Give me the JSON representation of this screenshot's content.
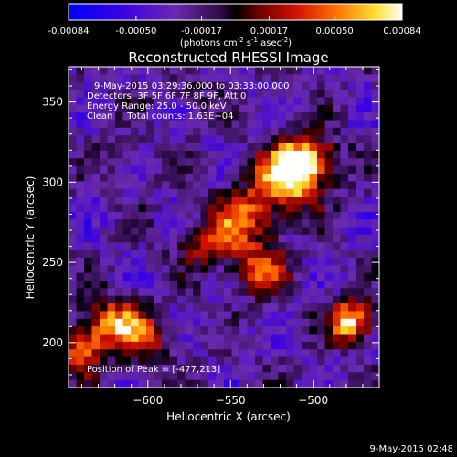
{
  "colorbar": {
    "ticks": [
      "-0.00084",
      "-0.00050",
      "-0.00017",
      "0.00017",
      "0.00050",
      "0.00084"
    ],
    "units_main": "(photons cm",
    "units_exp1": "-2",
    "units_mid": " s",
    "units_exp2": "-1",
    "units_end": " asec",
    "units_exp3": "-2",
    "units_close": ")"
  },
  "title": "Reconstructed RHESSI Image",
  "info": {
    "line1": "9-May-2015 03:29:36.000 to 03:33:00.000",
    "line2": "Detectors: 3F 5F 6F 7F 8F 9F, Att 0",
    "line3": "Energy Range: 25.0 - 50.0 keV",
    "line4": "Clean     Total counts: 1.63E+04"
  },
  "peak_label": "Position of Peak = [-477,213]",
  "footer_date": "9-May-2015 02:48",
  "chart_data": {
    "type": "heatmap",
    "xlabel": "Heliocentric X (arcsec)",
    "ylabel": "Heliocentric Y (arcsec)",
    "xlim": [
      -648,
      -460
    ],
    "ylim": [
      172,
      372
    ],
    "xticks": [
      -600,
      -550,
      -500
    ],
    "xtick_labels": [
      "−600",
      "−550",
      "−500"
    ],
    "yticks": [
      200,
      250,
      300,
      350
    ],
    "ytick_labels": [
      "200",
      "250",
      "300",
      "350"
    ],
    "sources": [
      {
        "x": -515,
        "y": 303,
        "amp": 0.00084,
        "sx": 14,
        "sy": 14
      },
      {
        "x": -503,
        "y": 315,
        "amp": 0.0006,
        "sx": 12,
        "sy": 10
      },
      {
        "x": -540,
        "y": 280,
        "amp": 0.0005,
        "sx": 12,
        "sy": 12
      },
      {
        "x": -560,
        "y": 262,
        "amp": 0.00048,
        "sx": 14,
        "sy": 12
      },
      {
        "x": -530,
        "y": 245,
        "amp": 0.00052,
        "sx": 10,
        "sy": 12
      },
      {
        "x": -477,
        "y": 213,
        "amp": 0.00084,
        "sx": 9,
        "sy": 9
      },
      {
        "x": -618,
        "y": 212,
        "amp": 0.00072,
        "sx": 14,
        "sy": 10
      },
      {
        "x": -640,
        "y": 195,
        "amp": 0.00058,
        "sx": 10,
        "sy": 10
      },
      {
        "x": -600,
        "y": 198,
        "amp": 0.0003,
        "sx": 12,
        "sy": 10
      },
      {
        "x": -575,
        "y": 355,
        "amp": 0.0002,
        "sx": 10,
        "sy": 6
      },
      {
        "x": -610,
        "y": 315,
        "amp": 0.00012,
        "sx": 10,
        "sy": 10
      }
    ],
    "background_min": -0.00084,
    "background_max": 0.00012,
    "colorbar_range": [
      -0.00084,
      0.00084
    ],
    "colormap": [
      "#0000ff",
      "#5000d0",
      "#7030a0",
      "#000000",
      "#a00000",
      "#ff3000",
      "#ff9000",
      "#ffff40",
      "#ffffff"
    ],
    "peak": [
      -477,
      213
    ]
  }
}
